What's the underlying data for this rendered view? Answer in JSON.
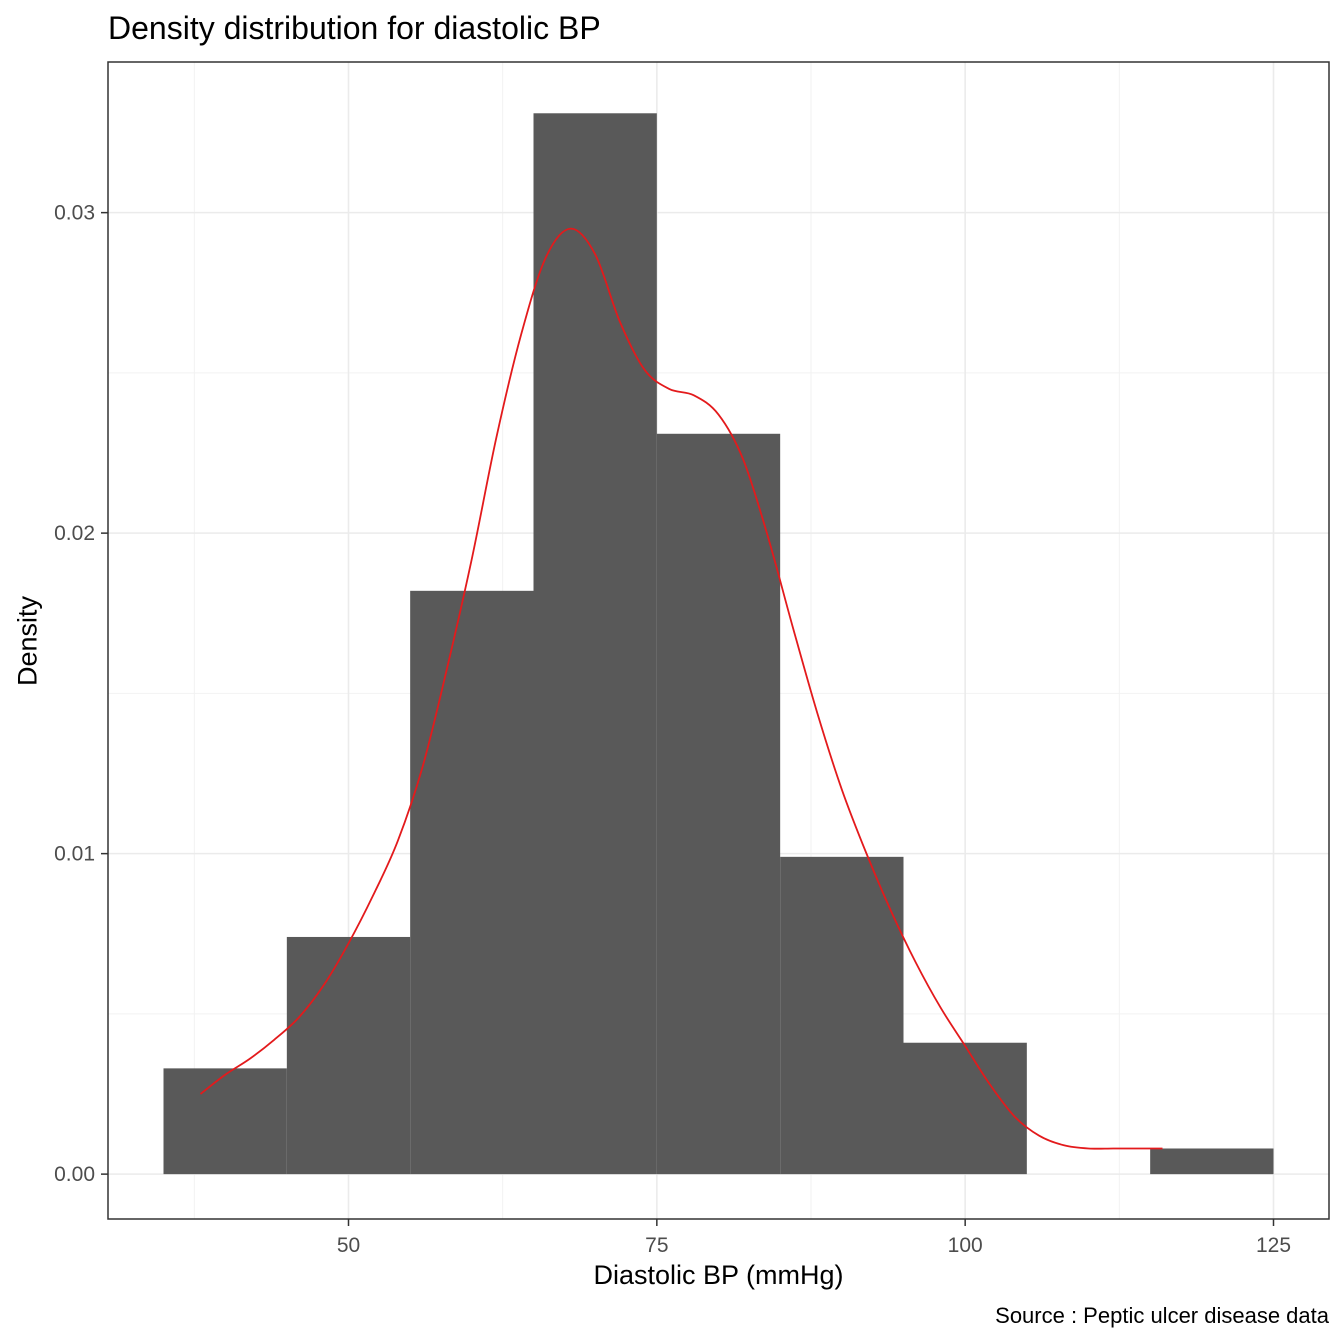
{
  "chart_data": {
    "type": "bar",
    "title": "Density distribution for diastolic BP",
    "xlabel": "Diastolic BP (mmHg)",
    "ylabel": "Density",
    "caption": "Source : Peptic ulcer disease data",
    "xlim": [
      30.5,
      129.5
    ],
    "ylim": [
      -0.0014,
      0.0347
    ],
    "x_ticks": [
      50,
      75,
      100,
      125
    ],
    "x_tick_labels": [
      "50",
      "75",
      "100",
      "125"
    ],
    "y_ticks": [
      0.0,
      0.01,
      0.02,
      0.03
    ],
    "y_tick_labels": [
      "0.00",
      "0.01",
      "0.02",
      "0.03"
    ],
    "grid": true,
    "bin_width": 10,
    "bars": [
      {
        "x_start": 35,
        "x_end": 45,
        "density": 0.0033
      },
      {
        "x_start": 45,
        "x_end": 55,
        "density": 0.0074
      },
      {
        "x_start": 55,
        "x_end": 65,
        "density": 0.0182
      },
      {
        "x_start": 65,
        "x_end": 75,
        "density": 0.0331
      },
      {
        "x_start": 75,
        "x_end": 85,
        "density": 0.0231
      },
      {
        "x_start": 85,
        "x_end": 95,
        "density": 0.0099
      },
      {
        "x_start": 95,
        "x_end": 105,
        "density": 0.0041
      },
      {
        "x_start": 105,
        "x_end": 115,
        "density": 0.0
      },
      {
        "x_start": 115,
        "x_end": 125,
        "density": 0.0008
      }
    ],
    "density_curve": {
      "color": "#e31a1c",
      "x": [
        38,
        40,
        42,
        44,
        46,
        48,
        50,
        52,
        54,
        56,
        58,
        60,
        62,
        64,
        66,
        68,
        70,
        72,
        74,
        76,
        78,
        80,
        82,
        84,
        86,
        88,
        90,
        92,
        94,
        96,
        98,
        100,
        102,
        104,
        106,
        108,
        110,
        112,
        114,
        116
      ],
      "y": [
        0.0025,
        0.0031,
        0.0036,
        0.0042,
        0.0049,
        0.0059,
        0.0072,
        0.0087,
        0.0104,
        0.0127,
        0.0158,
        0.0192,
        0.023,
        0.0262,
        0.0286,
        0.0295,
        0.0287,
        0.0266,
        0.0251,
        0.0245,
        0.0243,
        0.0237,
        0.0223,
        0.0199,
        0.0171,
        0.0144,
        0.012,
        0.01,
        0.0082,
        0.0066,
        0.0052,
        0.004,
        0.0028,
        0.0018,
        0.0012,
        0.0009,
        0.0008,
        0.0008,
        0.0008,
        0.0008
      ]
    },
    "colors": {
      "bar_fill": "#595959",
      "panel_border": "#333333",
      "grid_major": "#ebebeb",
      "grid_minor": "#f2f2f2"
    }
  }
}
